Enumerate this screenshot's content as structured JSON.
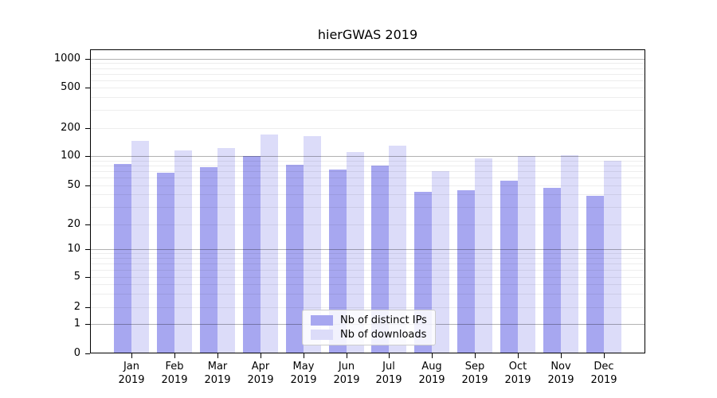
{
  "chart_data": {
    "type": "bar",
    "title": "hierGWAS 2019",
    "categories": [
      "Jan 2019",
      "Feb 2019",
      "Mar 2019",
      "Apr 2019",
      "May 2019",
      "Jun 2019",
      "Jul 2019",
      "Aug 2019",
      "Sep 2019",
      "Oct 2019",
      "Nov 2019",
      "Dec 2019"
    ],
    "series": [
      {
        "name": "Nb of distinct IPs",
        "color": "#a7a7f0",
        "values": [
          83,
          67,
          76,
          100,
          81,
          72,
          79,
          43,
          44,
          56,
          47,
          39
        ]
      },
      {
        "name": "Nb of downloads",
        "color": "#dcdcf9",
        "values": [
          146,
          116,
          123,
          170,
          164,
          110,
          129,
          70,
          95,
          100,
          103,
          90
        ]
      }
    ],
    "xlabel": "",
    "ylabel": "",
    "yscale": "log with 0 baseline",
    "yticks": [
      0,
      1,
      2,
      5,
      10,
      20,
      50,
      100,
      200,
      500,
      1000
    ],
    "ylim": [
      0,
      1250
    ],
    "grid": true,
    "legend_position": "bottom-center-inside"
  },
  "colors": {
    "bar_ips": "#a7a7f0",
    "bar_downloads": "#dcdcf9",
    "axis": "#000000",
    "major_grid": "#4d4d4d",
    "minor_grid": "#ededed",
    "legend_border": "#cccccc",
    "background": "#ffffff",
    "text": "#000000"
  }
}
